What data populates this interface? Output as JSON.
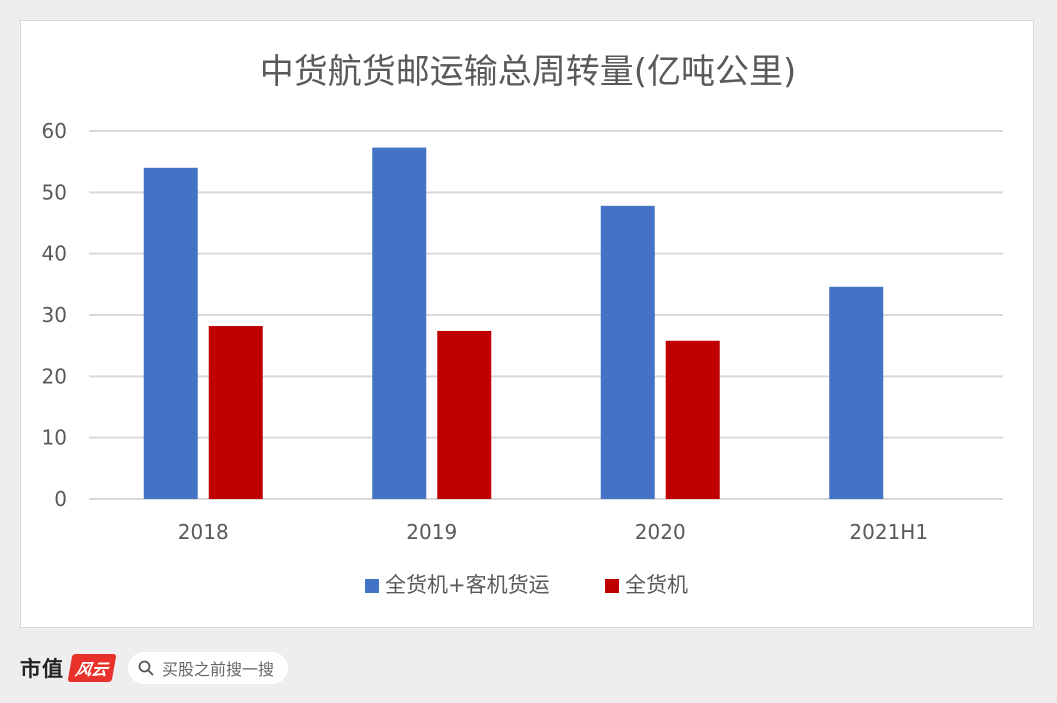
{
  "chart_data": {
    "type": "bar",
    "title": "中货航货邮运输总周转量(亿吨公里)",
    "categories": [
      "2018",
      "2019",
      "2020",
      "2021H1"
    ],
    "series": [
      {
        "name": "全货机+客机货运",
        "values": [
          54.0,
          57.3,
          47.8,
          34.6
        ],
        "color": "#4472c4"
      },
      {
        "name": "全货机",
        "values": [
          28.2,
          27.4,
          25.8,
          null
        ],
        "color": "#c00000"
      }
    ],
    "ylim": [
      0,
      60
    ],
    "yticks": [
      0,
      10,
      20,
      30,
      40,
      50,
      60
    ],
    "grid": true,
    "legend": "bottom"
  },
  "footer": {
    "brand": "市值",
    "brand_badge": "风云",
    "search_placeholder": "买股之前搜一搜"
  },
  "colors": {
    "page_bg": "#eeeeee",
    "brand_red": "#e8312a"
  }
}
